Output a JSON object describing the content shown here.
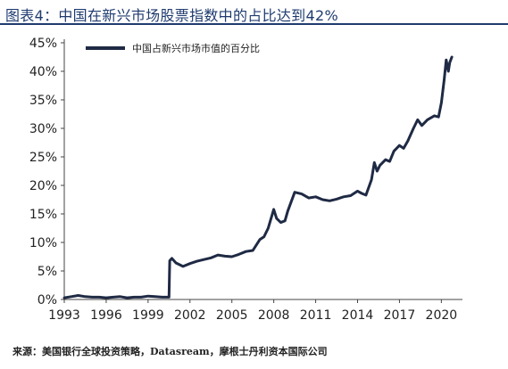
{
  "figure": {
    "title": "图表4：中国在新兴市场股票指数中的占比达到42%",
    "source": "来源：美国银行全球投资策略，Datasream，摩根士丹利资本国际公司"
  },
  "chart_data": {
    "type": "line",
    "title": "",
    "xlabel": "",
    "ylabel": "",
    "x_ticks": [
      "1993",
      "1996",
      "1999",
      "2002",
      "2005",
      "2008",
      "2011",
      "2014",
      "2017",
      "2020"
    ],
    "y_ticks": [
      "0%",
      "5%",
      "10%",
      "15%",
      "20%",
      "25%",
      "30%",
      "35%",
      "40%",
      "45%"
    ],
    "xlim": [
      1993,
      2021
    ],
    "ylim": [
      0,
      45
    ],
    "legend_position": "top-left",
    "grid": false,
    "series": [
      {
        "name": "中国占新兴市场市值的百分比",
        "color": "#1f2a44",
        "x": [
          1993.0,
          1993.5,
          1994.0,
          1994.5,
          1995.0,
          1995.5,
          1996.0,
          1996.5,
          1997.0,
          1997.5,
          1998.0,
          1998.5,
          1999.0,
          1999.5,
          2000.0,
          2000.5,
          2000.55,
          2000.7,
          2001.0,
          2001.5,
          2002.0,
          2002.5,
          2003.0,
          2003.5,
          2004.0,
          2004.5,
          2005.0,
          2005.5,
          2006.0,
          2006.5,
          2007.0,
          2007.3,
          2007.6,
          2008.0,
          2008.2,
          2008.5,
          2008.8,
          2009.0,
          2009.5,
          2010.0,
          2010.5,
          2011.0,
          2011.5,
          2012.0,
          2012.5,
          2013.0,
          2013.5,
          2014.0,
          2014.3,
          2014.6,
          2015.0,
          2015.2,
          2015.4,
          2015.6,
          2016.0,
          2016.3,
          2016.6,
          2017.0,
          2017.3,
          2017.6,
          2018.0,
          2018.3,
          2018.6,
          2019.0,
          2019.5,
          2019.8,
          2020.0,
          2020.2,
          2020.35,
          2020.5,
          2020.6,
          2020.75
        ],
        "values": [
          0.3,
          0.5,
          0.7,
          0.5,
          0.4,
          0.4,
          0.3,
          0.4,
          0.5,
          0.3,
          0.4,
          0.4,
          0.6,
          0.5,
          0.4,
          0.4,
          6.8,
          7.2,
          6.4,
          5.8,
          6.3,
          6.7,
          7.0,
          7.3,
          7.8,
          7.6,
          7.5,
          7.9,
          8.4,
          8.6,
          10.5,
          11.0,
          12.5,
          15.8,
          14.2,
          13.5,
          13.8,
          15.5,
          18.8,
          18.5,
          17.8,
          18.0,
          17.5,
          17.3,
          17.6,
          18.0,
          18.2,
          19.0,
          18.6,
          18.3,
          21.0,
          24.0,
          22.5,
          23.5,
          24.5,
          24.2,
          26.0,
          27.0,
          26.5,
          27.8,
          30.0,
          31.5,
          30.5,
          31.5,
          32.2,
          32.0,
          34.5,
          38.5,
          42.0,
          40.0,
          41.5,
          42.5
        ]
      }
    ]
  }
}
